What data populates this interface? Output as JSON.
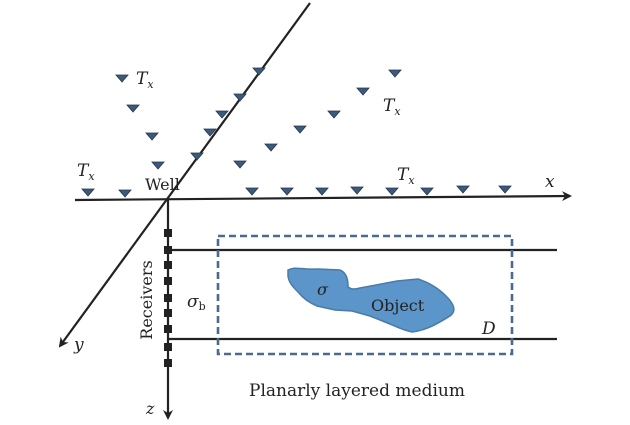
{
  "labels": {
    "tx": "T",
    "tx_sub": "x",
    "well": "Well",
    "x_axis": "x",
    "y_axis": "y",
    "z_axis": "z",
    "receivers": "Receivers",
    "sigma_b": "σ",
    "sigma_b_sub": "b",
    "sigma": "σ",
    "object": "Object",
    "domain": "D",
    "medium": "Planarly layered medium"
  },
  "colors": {
    "axis": "#222222",
    "transmitter": "#3d5a7a",
    "domain_box": "#4a6a8f",
    "object_fill": "#5b95c9",
    "object_stroke": "#4a7aa8",
    "receiver": "#222222"
  }
}
